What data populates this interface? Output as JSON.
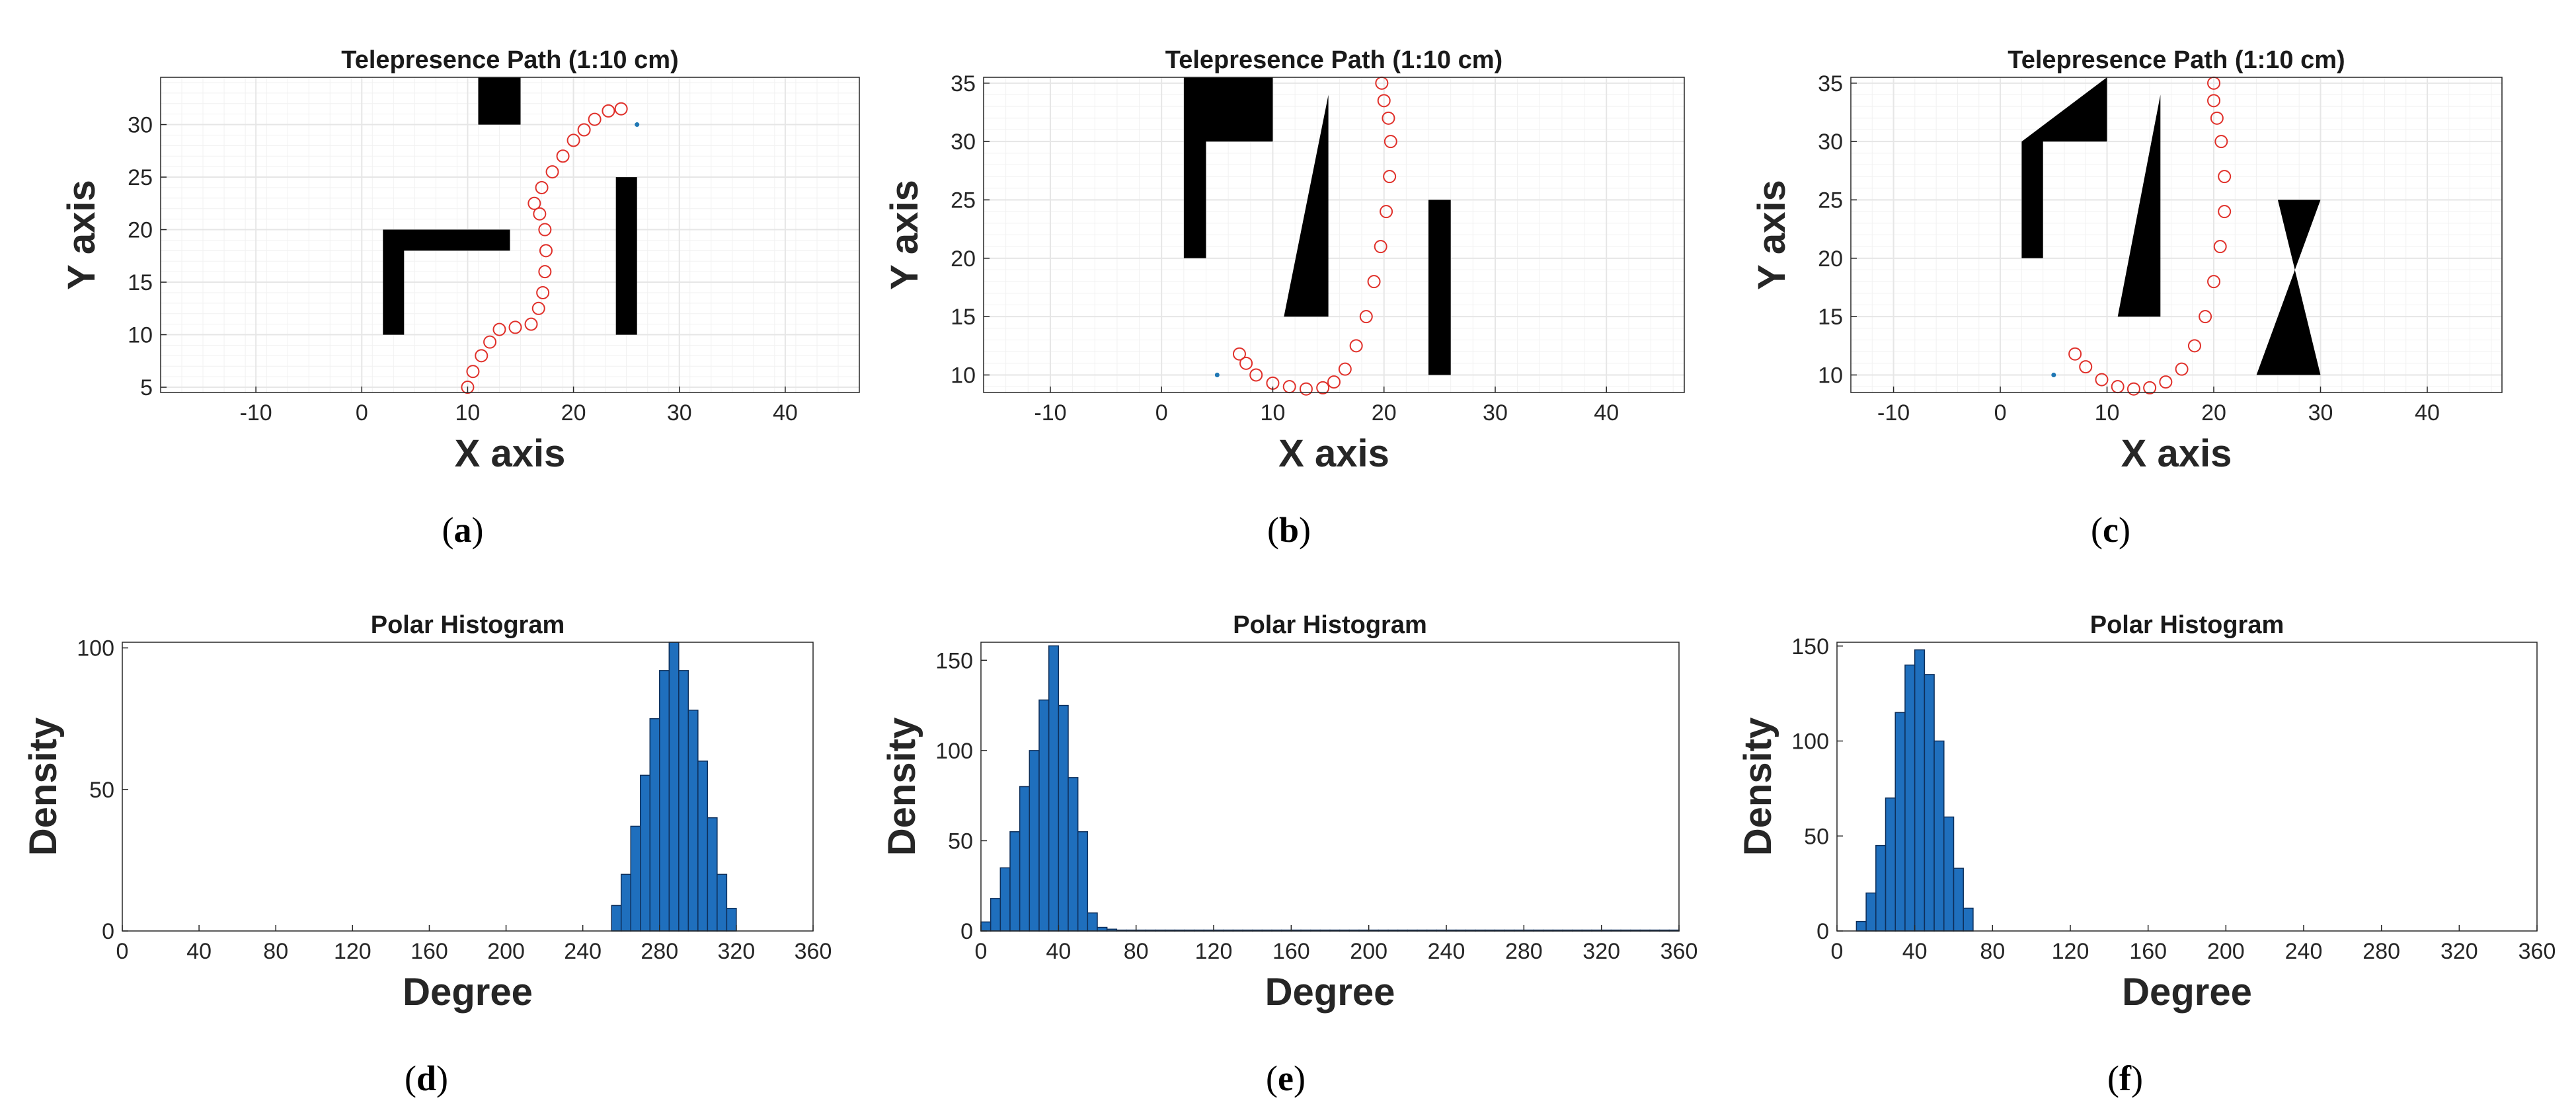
{
  "chart_data": [
    {
      "type": "scatter",
      "id": "a",
      "caption_letter": "a",
      "title": "Telepresence Path (1:10 cm)",
      "xlabel": "X axis",
      "ylabel": "Y axis",
      "xlim": [
        -19,
        47
      ],
      "ylim": [
        4.5,
        34.5
      ],
      "xticks": [
        -10,
        0,
        10,
        20,
        30,
        40
      ],
      "yticks": [
        5,
        10,
        15,
        20,
        25,
        30
      ],
      "grid": true,
      "obstacles": [
        {
          "name": "top-block",
          "points": [
            [
              11,
              30
            ],
            [
              15,
              30
            ],
            [
              15,
              34.5
            ],
            [
              11,
              34.5
            ]
          ]
        },
        {
          "name": "l-shape",
          "points": [
            [
              2,
              10
            ],
            [
              4,
              10
            ],
            [
              4,
              18
            ],
            [
              14,
              18
            ],
            [
              14,
              20
            ],
            [
              2,
              20
            ]
          ]
        },
        {
          "name": "right-bar",
          "points": [
            [
              24,
              10
            ],
            [
              26,
              10
            ],
            [
              26,
              25
            ],
            [
              24,
              25
            ]
          ]
        }
      ],
      "path": [
        [
          10,
          5
        ],
        [
          10.5,
          6.5
        ],
        [
          11.3,
          8
        ],
        [
          12.1,
          9.3
        ],
        [
          13,
          10.5
        ],
        [
          14.5,
          10.7
        ],
        [
          16,
          11
        ],
        [
          16.7,
          12.5
        ],
        [
          17.1,
          14
        ],
        [
          17.3,
          16
        ],
        [
          17.4,
          18
        ],
        [
          17.3,
          20
        ],
        [
          16.8,
          21.5
        ],
        [
          16.3,
          22.5
        ],
        [
          17,
          24
        ],
        [
          18,
          25.5
        ],
        [
          19,
          27
        ],
        [
          20,
          28.5
        ],
        [
          21,
          29.5
        ],
        [
          22,
          30.5
        ],
        [
          23.3,
          31.3
        ],
        [
          24.5,
          31.5
        ]
      ],
      "target": [
        26,
        30
      ]
    },
    {
      "type": "scatter",
      "id": "b",
      "caption_letter": "b",
      "title": "Telepresence Path (1:10 cm)",
      "xlabel": "X axis",
      "ylabel": "Y axis",
      "xlim": [
        -16,
        47
      ],
      "ylim": [
        8.5,
        35.5
      ],
      "xticks": [
        -10,
        0,
        10,
        20,
        30,
        40
      ],
      "yticks": [
        10,
        15,
        20,
        25,
        30,
        35
      ],
      "grid": true,
      "obstacles": [
        {
          "name": "l-shape",
          "points": [
            [
              2,
              20
            ],
            [
              4,
              20
            ],
            [
              4,
              30
            ],
            [
              10,
              30
            ],
            [
              10,
              35.5
            ],
            [
              2,
              35.5
            ]
          ]
        },
        {
          "name": "triangle",
          "points": [
            [
              11,
              15
            ],
            [
              15,
              15
            ],
            [
              15,
              34
            ]
          ]
        },
        {
          "name": "right-bar",
          "points": [
            [
              24,
              10
            ],
            [
              26,
              10
            ],
            [
              26,
              25
            ],
            [
              24,
              25
            ]
          ]
        }
      ],
      "path": [
        [
          7,
          11.8
        ],
        [
          7.6,
          11
        ],
        [
          8.5,
          10
        ],
        [
          10,
          9.3
        ],
        [
          11.5,
          9
        ],
        [
          13,
          8.8
        ],
        [
          14.5,
          8.9
        ],
        [
          15.5,
          9.4
        ],
        [
          16.5,
          10.5
        ],
        [
          17.5,
          12.5
        ],
        [
          18.4,
          15
        ],
        [
          19.1,
          18
        ],
        [
          19.7,
          21
        ],
        [
          20.2,
          24
        ],
        [
          20.5,
          27
        ],
        [
          20.6,
          30
        ],
        [
          20.4,
          32
        ],
        [
          20,
          33.5
        ],
        [
          19.8,
          35
        ]
      ],
      "target": [
        5,
        10
      ]
    },
    {
      "type": "scatter",
      "id": "c",
      "caption_letter": "c",
      "title": "Telepresence Path (1:10 cm)",
      "xlabel": "X axis",
      "ylabel": "Y axis",
      "xlim": [
        -14,
        47
      ],
      "ylim": [
        8.5,
        35.5
      ],
      "xticks": [
        -10,
        0,
        10,
        20,
        30,
        40
      ],
      "yticks": [
        10,
        15,
        20,
        25,
        30,
        35
      ],
      "grid": true,
      "obstacles": [
        {
          "name": "angled-l-shape",
          "points": [
            [
              2,
              20
            ],
            [
              4,
              20
            ],
            [
              4,
              30
            ],
            [
              10,
              30
            ],
            [
              10,
              35.5
            ],
            [
              2,
              30
            ]
          ]
        },
        {
          "name": "triangle",
          "points": [
            [
              11,
              15
            ],
            [
              15,
              15
            ],
            [
              15,
              34
            ]
          ]
        },
        {
          "name": "hourglass",
          "points": [
            [
              26,
              25
            ],
            [
              30,
              25
            ],
            [
              24,
              10
            ],
            [
              30,
              10
            ]
          ]
        }
      ],
      "path": [
        [
          7,
          11.8
        ],
        [
          8,
          10.7
        ],
        [
          9.5,
          9.6
        ],
        [
          11,
          9
        ],
        [
          12.5,
          8.8
        ],
        [
          14,
          8.9
        ],
        [
          15.5,
          9.4
        ],
        [
          17,
          10.5
        ],
        [
          18.2,
          12.5
        ],
        [
          19.2,
          15
        ],
        [
          20,
          18
        ],
        [
          20.6,
          21
        ],
        [
          21,
          24
        ],
        [
          21,
          27
        ],
        [
          20.7,
          30
        ],
        [
          20.3,
          32
        ],
        [
          20,
          33.5
        ],
        [
          20,
          35
        ]
      ],
      "target": [
        5,
        10
      ]
    },
    {
      "type": "bar",
      "id": "d",
      "caption_letter": "d",
      "title": "Polar Histogram",
      "xlabel": "Degree",
      "ylabel": "Density",
      "xlim": [
        0,
        360
      ],
      "ylim": [
        0,
        102
      ],
      "xticks": [
        0,
        40,
        80,
        120,
        160,
        200,
        240,
        280,
        320,
        360
      ],
      "yticks": [
        0,
        50,
        100
      ],
      "grid": false,
      "bin_width": 5,
      "bins": [
        [
          255,
          9
        ],
        [
          260,
          20
        ],
        [
          265,
          37
        ],
        [
          270,
          55
        ],
        [
          275,
          75
        ],
        [
          280,
          92
        ],
        [
          285,
          102
        ],
        [
          290,
          92
        ],
        [
          295,
          78
        ],
        [
          300,
          60
        ],
        [
          305,
          40
        ],
        [
          310,
          20
        ],
        [
          315,
          8
        ]
      ]
    },
    {
      "type": "bar",
      "id": "e",
      "caption_letter": "e",
      "title": "Polar Histogram",
      "xlabel": "Degree",
      "ylabel": "Density",
      "xlim": [
        0,
        360
      ],
      "ylim": [
        0,
        160
      ],
      "xticks": [
        0,
        40,
        80,
        120,
        160,
        200,
        240,
        280,
        320,
        360
      ],
      "yticks": [
        0,
        50,
        100,
        150
      ],
      "grid": false,
      "bin_width": 5,
      "bins": [
        [
          0,
          5
        ],
        [
          5,
          18
        ],
        [
          10,
          35
        ],
        [
          15,
          55
        ],
        [
          20,
          80
        ],
        [
          25,
          100
        ],
        [
          30,
          128
        ],
        [
          35,
          158
        ],
        [
          40,
          125
        ],
        [
          45,
          85
        ],
        [
          50,
          55
        ],
        [
          55,
          10
        ],
        [
          60,
          2
        ],
        [
          65,
          1
        ],
        [
          70,
          0.5
        ],
        [
          75,
          0.5
        ],
        [
          80,
          0.5
        ],
        [
          85,
          0.5
        ],
        [
          90,
          0.5
        ],
        [
          95,
          0.5
        ],
        [
          100,
          0.5
        ],
        [
          105,
          0.5
        ],
        [
          110,
          0.5
        ],
        [
          115,
          0.5
        ],
        [
          120,
          0.5
        ],
        [
          125,
          0.5
        ],
        [
          130,
          0.5
        ],
        [
          135,
          0.5
        ],
        [
          140,
          0.5
        ],
        [
          145,
          0.5
        ],
        [
          150,
          0.5
        ],
        [
          155,
          0.5
        ],
        [
          160,
          0.5
        ],
        [
          165,
          0.5
        ],
        [
          170,
          0.5
        ],
        [
          175,
          0.5
        ],
        [
          180,
          0.5
        ],
        [
          185,
          0.5
        ],
        [
          190,
          0.5
        ],
        [
          195,
          0.5
        ],
        [
          200,
          0.5
        ],
        [
          205,
          0.5
        ],
        [
          210,
          0.5
        ],
        [
          215,
          0.5
        ],
        [
          220,
          0.5
        ],
        [
          225,
          0.5
        ],
        [
          230,
          0.5
        ],
        [
          235,
          0.5
        ],
        [
          240,
          0.5
        ],
        [
          245,
          0.5
        ],
        [
          250,
          0.5
        ],
        [
          255,
          0.5
        ],
        [
          260,
          0.5
        ],
        [
          265,
          0.5
        ],
        [
          270,
          0.5
        ],
        [
          275,
          0.5
        ],
        [
          280,
          0.5
        ],
        [
          285,
          0.5
        ],
        [
          290,
          0.5
        ],
        [
          295,
          0.5
        ],
        [
          300,
          0.5
        ],
        [
          305,
          0.5
        ],
        [
          310,
          0.5
        ],
        [
          315,
          0.5
        ],
        [
          320,
          0.5
        ],
        [
          325,
          0.5
        ],
        [
          330,
          0.5
        ],
        [
          335,
          0.5
        ],
        [
          340,
          0.5
        ],
        [
          345,
          0.5
        ],
        [
          350,
          0.5
        ],
        [
          355,
          0.5
        ]
      ]
    },
    {
      "type": "bar",
      "id": "f",
      "caption_letter": "f",
      "title": "Polar Histogram",
      "xlabel": "Degree",
      "ylabel": "Density",
      "xlim": [
        0,
        360
      ],
      "ylim": [
        0,
        152
      ],
      "xticks": [
        0,
        40,
        80,
        120,
        160,
        200,
        240,
        280,
        320,
        360
      ],
      "yticks": [
        0,
        50,
        100,
        150
      ],
      "grid": false,
      "bin_width": 5,
      "bins": [
        [
          10,
          5
        ],
        [
          15,
          20
        ],
        [
          20,
          45
        ],
        [
          25,
          70
        ],
        [
          30,
          115
        ],
        [
          35,
          140
        ],
        [
          40,
          148
        ],
        [
          45,
          135
        ],
        [
          50,
          100
        ],
        [
          55,
          60
        ],
        [
          60,
          33
        ],
        [
          65,
          12
        ]
      ]
    }
  ],
  "colors": {
    "path": "#e0302a",
    "target": "#1f77b4",
    "bar_fill": "#1f6fbd",
    "bar_edge": "#0e2f5a",
    "obstacle": "#000000",
    "grid": "#e6e6e6",
    "axes": "#262626"
  }
}
